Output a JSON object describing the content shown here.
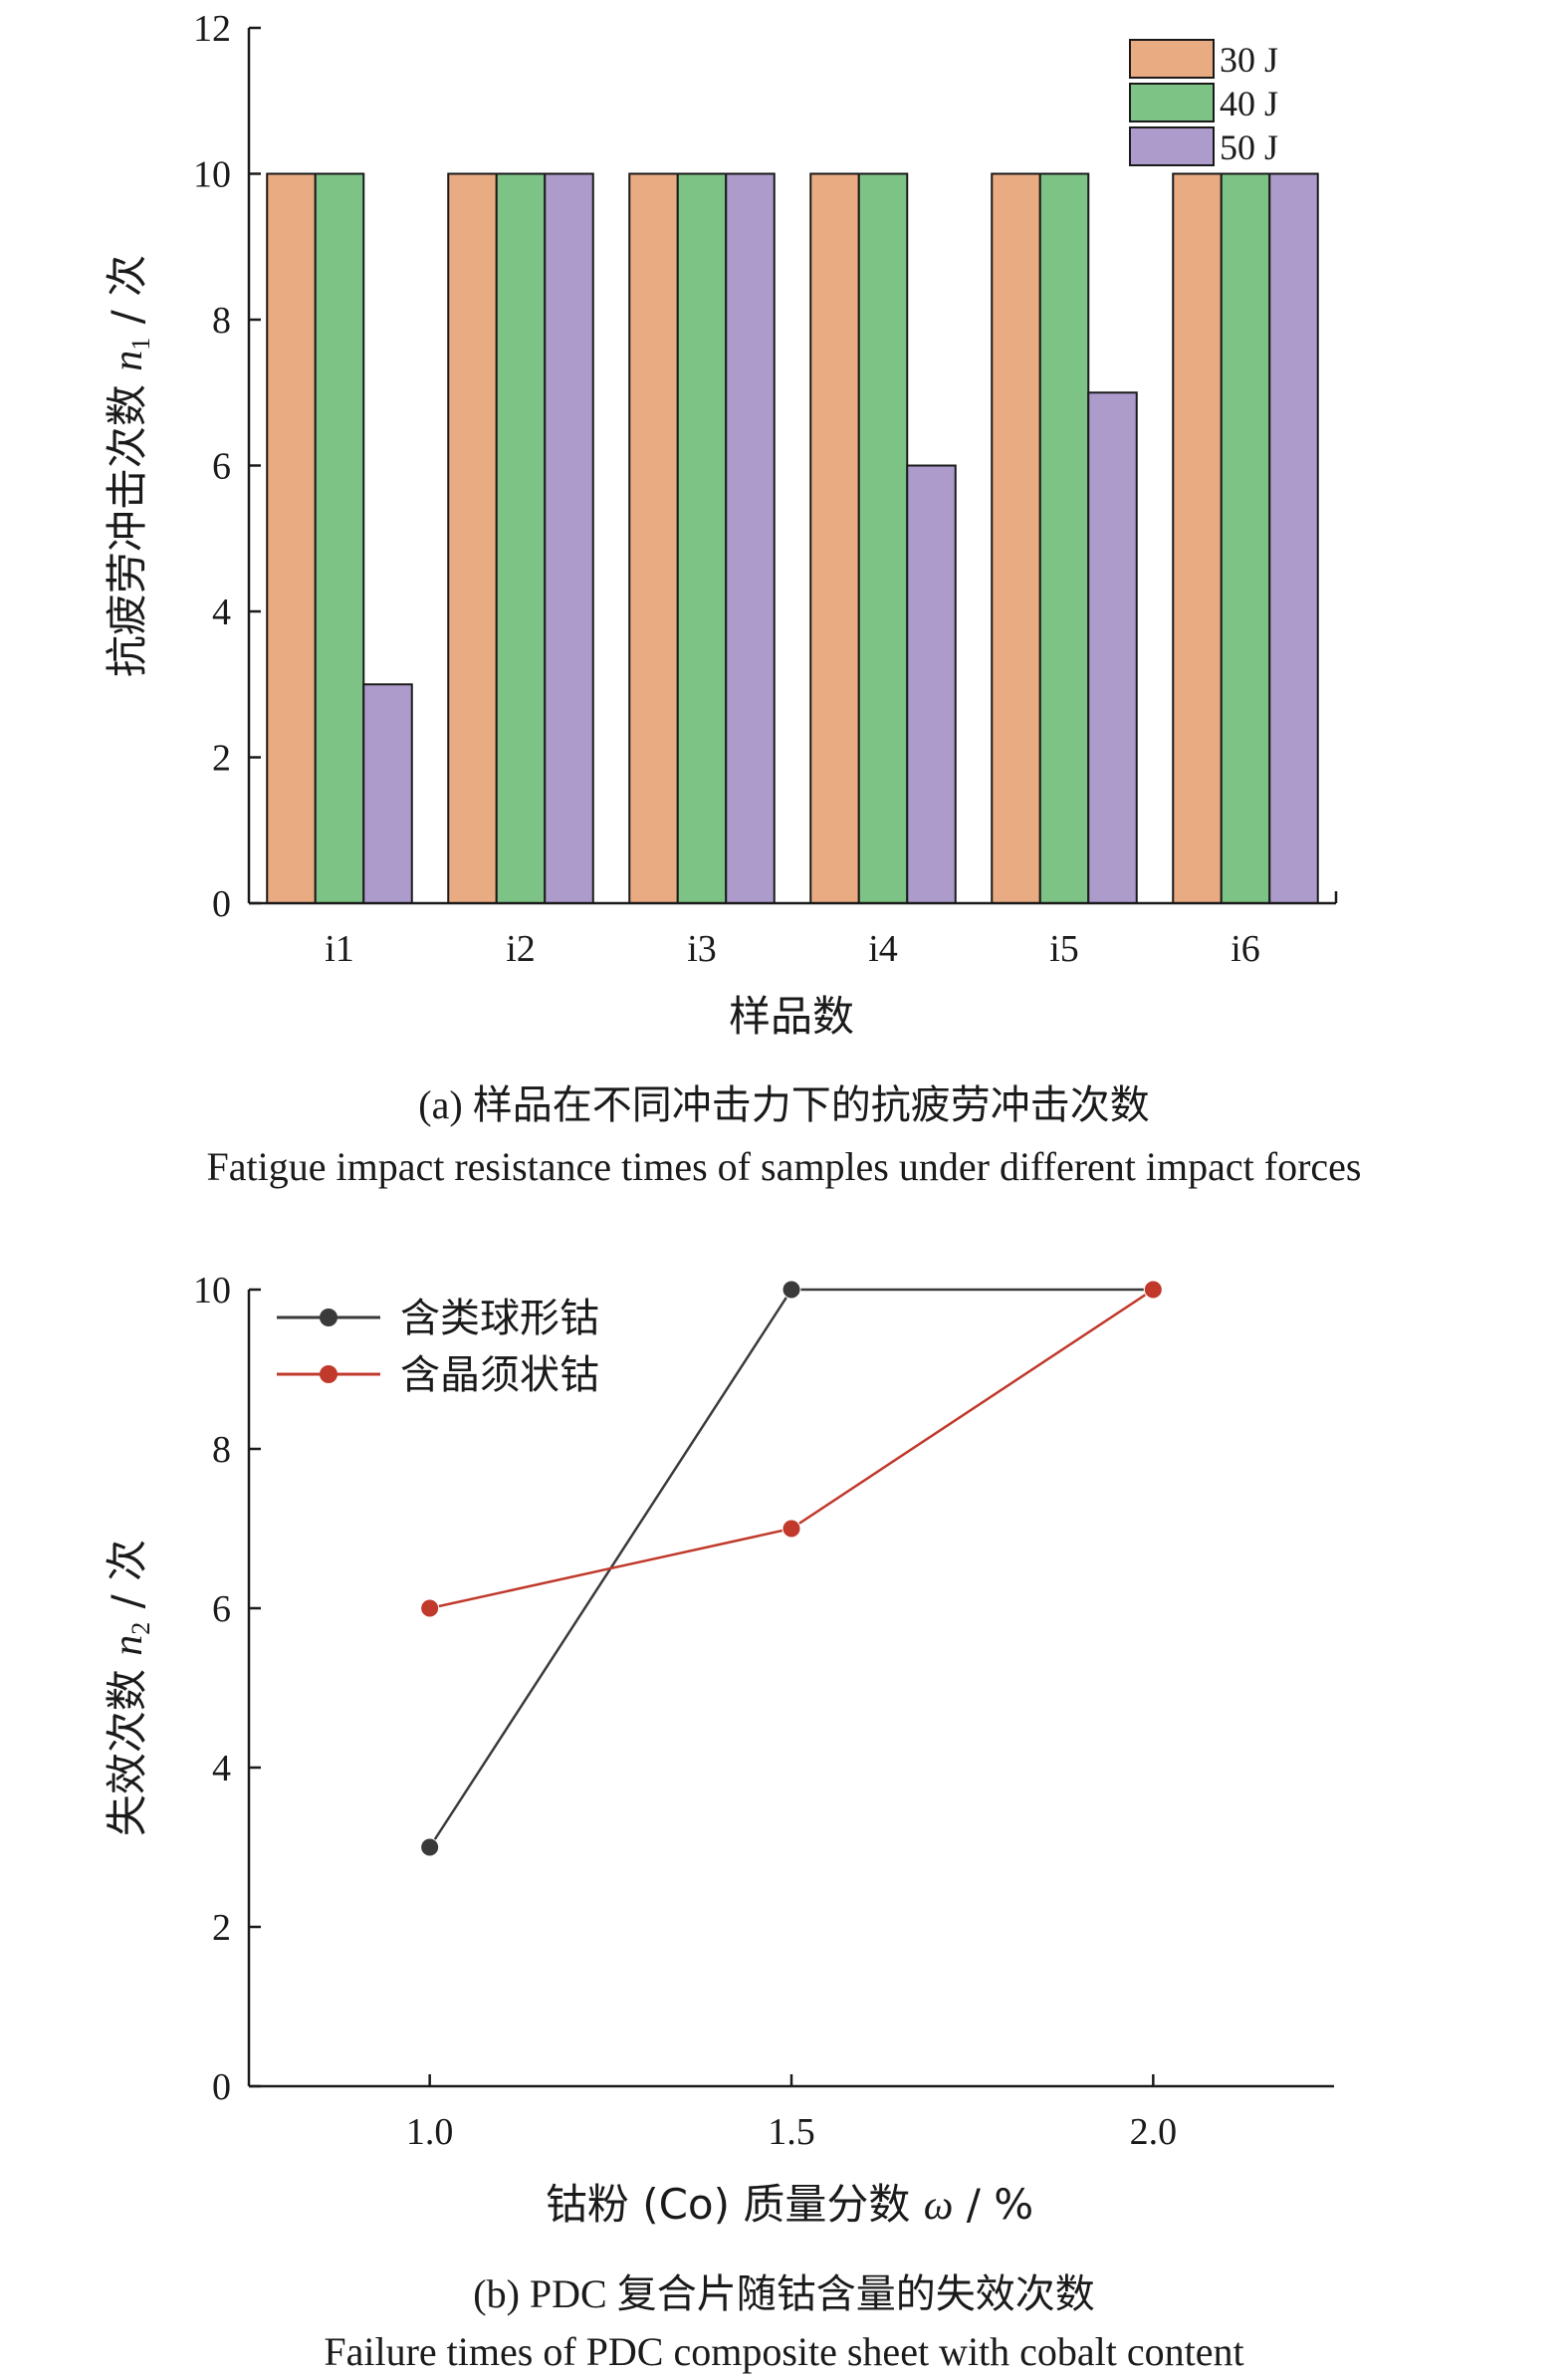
{
  "chart_data": [
    {
      "type": "bar",
      "categories": [
        "i1",
        "i2",
        "i3",
        "i4",
        "i5",
        "i6"
      ],
      "series": [
        {
          "name": "30 J",
          "values": [
            10,
            10,
            10,
            10,
            10,
            10
          ],
          "color": "#E9AB82"
        },
        {
          "name": "40 J",
          "values": [
            10,
            10,
            10,
            10,
            10,
            10
          ],
          "color": "#7EC386"
        },
        {
          "name": "50 J",
          "values": [
            3,
            10,
            10,
            6,
            7,
            10
          ],
          "color": "#AC9BCB"
        }
      ],
      "ylabel_text": "抗疲劳冲击次数 ",
      "ylabel_var": "n",
      "ylabel_sub": "1",
      "ylabel_unit": " / 次",
      "xlabel": "样品数",
      "ylim": [
        0,
        12
      ],
      "yticks": [
        "0",
        "2",
        "4",
        "6",
        "8",
        "10",
        "12"
      ],
      "legend_position": "top-right",
      "caption_cn": "(a) 样品在不同冲击力下的抗疲劳冲击次数",
      "caption_en": "Fatigue impact resistance times of samples under different impact forces"
    },
    {
      "type": "line",
      "x": [
        1.0,
        1.5,
        2.0
      ],
      "xticks": [
        "1.0",
        "1.5",
        "2.0"
      ],
      "xlim": [
        0.75,
        2.25
      ],
      "series": [
        {
          "name": "含类球形钴",
          "values": [
            3,
            10,
            10
          ],
          "color": "#3a3a3a"
        },
        {
          "name": "含晶须状钴",
          "values": [
            6,
            7,
            10
          ],
          "color": "#C0392B"
        }
      ],
      "ylabel_text": "失效次数 ",
      "ylabel_var": "n",
      "ylabel_sub": "2",
      "ylabel_unit": " / 次",
      "xlabel_text": "钴粉 (Co) 质量分数 ",
      "xlabel_var": "ω",
      "xlabel_unit": " / %",
      "ylim": [
        0,
        10
      ],
      "yticks": [
        "0",
        "2",
        "4",
        "6",
        "8",
        "10"
      ],
      "legend_position": "top-left",
      "caption_cn": "(b) PDC 复合片随钴含量的失效次数",
      "caption_en": "Failure times of PDC composite sheet with cobalt content"
    }
  ]
}
